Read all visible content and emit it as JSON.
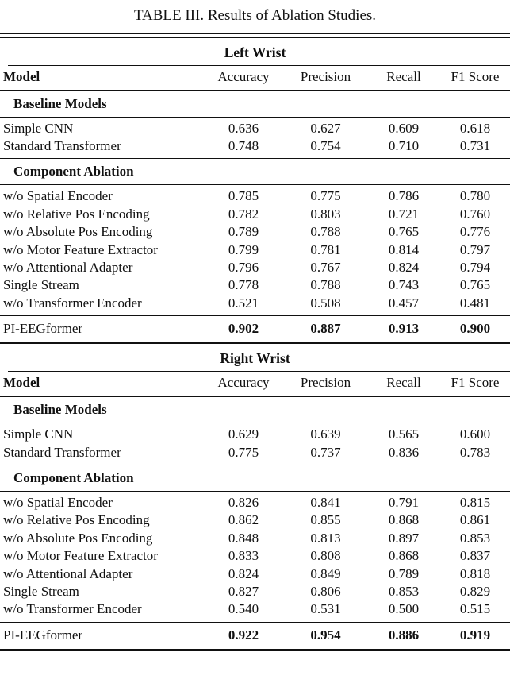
{
  "title": "TABLE III. Results of Ablation Studies.",
  "columns": [
    "Model",
    "Accuracy",
    "Precision",
    "Recall",
    "F1 Score"
  ],
  "sections": [
    {
      "header": "Left Wrist",
      "groups": [
        {
          "label": "Baseline Models",
          "rows": [
            {
              "model": "Simple CNN",
              "values": [
                "0.636",
                "0.627",
                "0.609",
                "0.618"
              ]
            },
            {
              "model": "Standard Transformer",
              "values": [
                "0.748",
                "0.754",
                "0.710",
                "0.731"
              ]
            }
          ]
        },
        {
          "label": "Component Ablation",
          "rows": [
            {
              "model": "w/o Spatial Encoder",
              "values": [
                "0.785",
                "0.775",
                "0.786",
                "0.780"
              ]
            },
            {
              "model": "w/o Relative Pos Encoding",
              "values": [
                "0.782",
                "0.803",
                "0.721",
                "0.760"
              ]
            },
            {
              "model": "w/o Absolute Pos Encoding",
              "values": [
                "0.789",
                "0.788",
                "0.765",
                "0.776"
              ]
            },
            {
              "model": "w/o Motor Feature Extractor",
              "values": [
                "0.799",
                "0.781",
                "0.814",
                "0.797"
              ]
            },
            {
              "model": "w/o Attentional Adapter",
              "values": [
                "0.796",
                "0.767",
                "0.824",
                "0.794"
              ]
            },
            {
              "model": "Single Stream",
              "values": [
                "0.778",
                "0.788",
                "0.743",
                "0.765"
              ]
            },
            {
              "model": "w/o Transformer Encoder",
              "values": [
                "0.521",
                "0.508",
                "0.457",
                "0.481"
              ]
            }
          ]
        }
      ],
      "final_row": {
        "model": "PI-EEGformer",
        "values": [
          "0.902",
          "0.887",
          "0.913",
          "0.900"
        ]
      }
    },
    {
      "header": "Right Wrist",
      "groups": [
        {
          "label": "Baseline Models",
          "rows": [
            {
              "model": "Simple CNN",
              "values": [
                "0.629",
                "0.639",
                "0.565",
                "0.600"
              ]
            },
            {
              "model": "Standard Transformer",
              "values": [
                "0.775",
                "0.737",
                "0.836",
                "0.783"
              ]
            }
          ]
        },
        {
          "label": "Component Ablation",
          "rows": [
            {
              "model": "w/o Spatial Encoder",
              "values": [
                "0.826",
                "0.841",
                "0.791",
                "0.815"
              ]
            },
            {
              "model": "w/o Relative Pos Encoding",
              "values": [
                "0.862",
                "0.855",
                "0.868",
                "0.861"
              ]
            },
            {
              "model": "w/o Absolute Pos Encoding",
              "values": [
                "0.848",
                "0.813",
                "0.897",
                "0.853"
              ]
            },
            {
              "model": "w/o Motor Feature Extractor",
              "values": [
                "0.833",
                "0.808",
                "0.868",
                "0.837"
              ]
            },
            {
              "model": "w/o Attentional Adapter",
              "values": [
                "0.824",
                "0.849",
                "0.789",
                "0.818"
              ]
            },
            {
              "model": "Single Stream",
              "values": [
                "0.827",
                "0.806",
                "0.853",
                "0.829"
              ]
            },
            {
              "model": "w/o Transformer Encoder",
              "values": [
                "0.540",
                "0.531",
                "0.500",
                "0.515"
              ]
            }
          ]
        }
      ],
      "final_row": {
        "model": "PI-EEGformer",
        "values": [
          "0.922",
          "0.954",
          "0.886",
          "0.919"
        ]
      }
    }
  ],
  "colors": {
    "text": "#111111",
    "background": "#ffffff",
    "rule": "#111111"
  }
}
